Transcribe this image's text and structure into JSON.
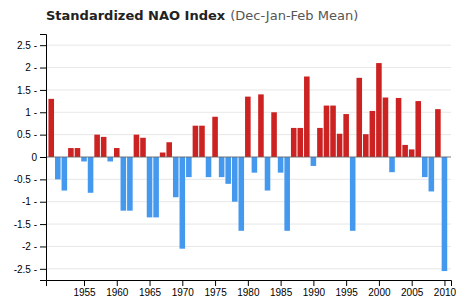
{
  "chart_data": {
    "type": "bar",
    "title": "Standardized NAO Index",
    "subtitle": "(Dec-Jan-Feb Mean)",
    "x": [
      1950,
      1951,
      1952,
      1953,
      1954,
      1955,
      1956,
      1957,
      1958,
      1959,
      1960,
      1961,
      1962,
      1963,
      1964,
      1965,
      1966,
      1967,
      1968,
      1969,
      1970,
      1971,
      1972,
      1973,
      1974,
      1975,
      1976,
      1977,
      1978,
      1979,
      1980,
      1981,
      1982,
      1983,
      1984,
      1985,
      1986,
      1987,
      1988,
      1989,
      1990,
      1991,
      1992,
      1993,
      1994,
      1995,
      1996,
      1997,
      1998,
      1999,
      2000,
      2001,
      2002,
      2003,
      2004,
      2005,
      2006,
      2007,
      2008,
      2009,
      2010
    ],
    "values": [
      1.3,
      -0.5,
      -0.75,
      0.2,
      0.2,
      -0.1,
      -0.8,
      0.5,
      0.45,
      -0.1,
      0.2,
      -1.2,
      -1.2,
      0.5,
      0.43,
      -1.35,
      -1.35,
      0.1,
      0.33,
      -0.9,
      -2.05,
      -0.45,
      0.7,
      0.7,
      -0.45,
      0.9,
      -0.45,
      -0.6,
      -1.0,
      -1.65,
      1.35,
      -0.35,
      1.4,
      -0.75,
      1.0,
      -0.35,
      -1.65,
      0.65,
      0.65,
      1.8,
      -0.2,
      0.65,
      1.15,
      1.15,
      0.52,
      0.96,
      -1.65,
      1.77,
      0.51,
      1.03,
      2.1,
      1.33,
      -0.34,
      1.32,
      0.27,
      0.17,
      1.25,
      -0.45,
      -0.77,
      1.07,
      -2.55
    ],
    "colors": [
      "#cc2222",
      "#4499ee",
      "#4499ee",
      "#cc2222",
      "#cc2222",
      "#4499ee",
      "#4499ee",
      "#cc2222",
      "#cc2222",
      "#4499ee",
      "#cc2222",
      "#4499ee",
      "#4499ee",
      "#cc2222",
      "#cc2222",
      "#4499ee",
      "#4499ee",
      "#cc2222",
      "#cc2222",
      "#4499ee",
      "#4499ee",
      "#4499ee",
      "#cc2222",
      "#cc2222",
      "#4499ee",
      "#cc2222",
      "#4499ee",
      "#4499ee",
      "#4499ee",
      "#4499ee",
      "#cc2222",
      "#4499ee",
      "#cc2222",
      "#4499ee",
      "#cc2222",
      "#4499ee",
      "#4499ee",
      "#cc2222",
      "#cc2222",
      "#cc2222",
      "#4499ee",
      "#cc2222",
      "#cc2222",
      "#cc2222",
      "#cc2222",
      "#cc2222",
      "#4499ee",
      "#cc2222",
      "#cc2222",
      "#cc2222",
      "#cc2222",
      "#cc2222",
      "#4499ee",
      "#cc2222",
      "#cc2222",
      "#cc2222",
      "#cc2222",
      "#4499ee",
      "#4499ee",
      "#cc2222",
      "#4499ee"
    ],
    "xlim": [
      1949.2,
      2011.0
    ],
    "xticks": [
      1955,
      1960,
      1965,
      1970,
      1975,
      1980,
      1985,
      1990,
      1995,
      2000,
      2005,
      2010
    ],
    "ylim": [
      -2.75,
      2.75
    ],
    "yticks": [
      {
        "value": -2.5,
        "label": "-2.5 -"
      },
      {
        "value": -2.0,
        "label": "-2 -"
      },
      {
        "value": -1.5,
        "label": "-1.5 -"
      },
      {
        "value": -1.0,
        "label": "-1 -"
      },
      {
        "value": -0.5,
        "label": "-0.5 -"
      },
      0,
      {
        "value": 0.5,
        "label": "0.5 -"
      },
      {
        "value": 1.0,
        "label": "1 -"
      },
      {
        "value": 1.5,
        "label": "1.5 -"
      },
      {
        "value": 2.0,
        "label": "2 -"
      },
      {
        "value": 2.5,
        "label": "2.5 -"
      }
    ],
    "grid": true
  }
}
